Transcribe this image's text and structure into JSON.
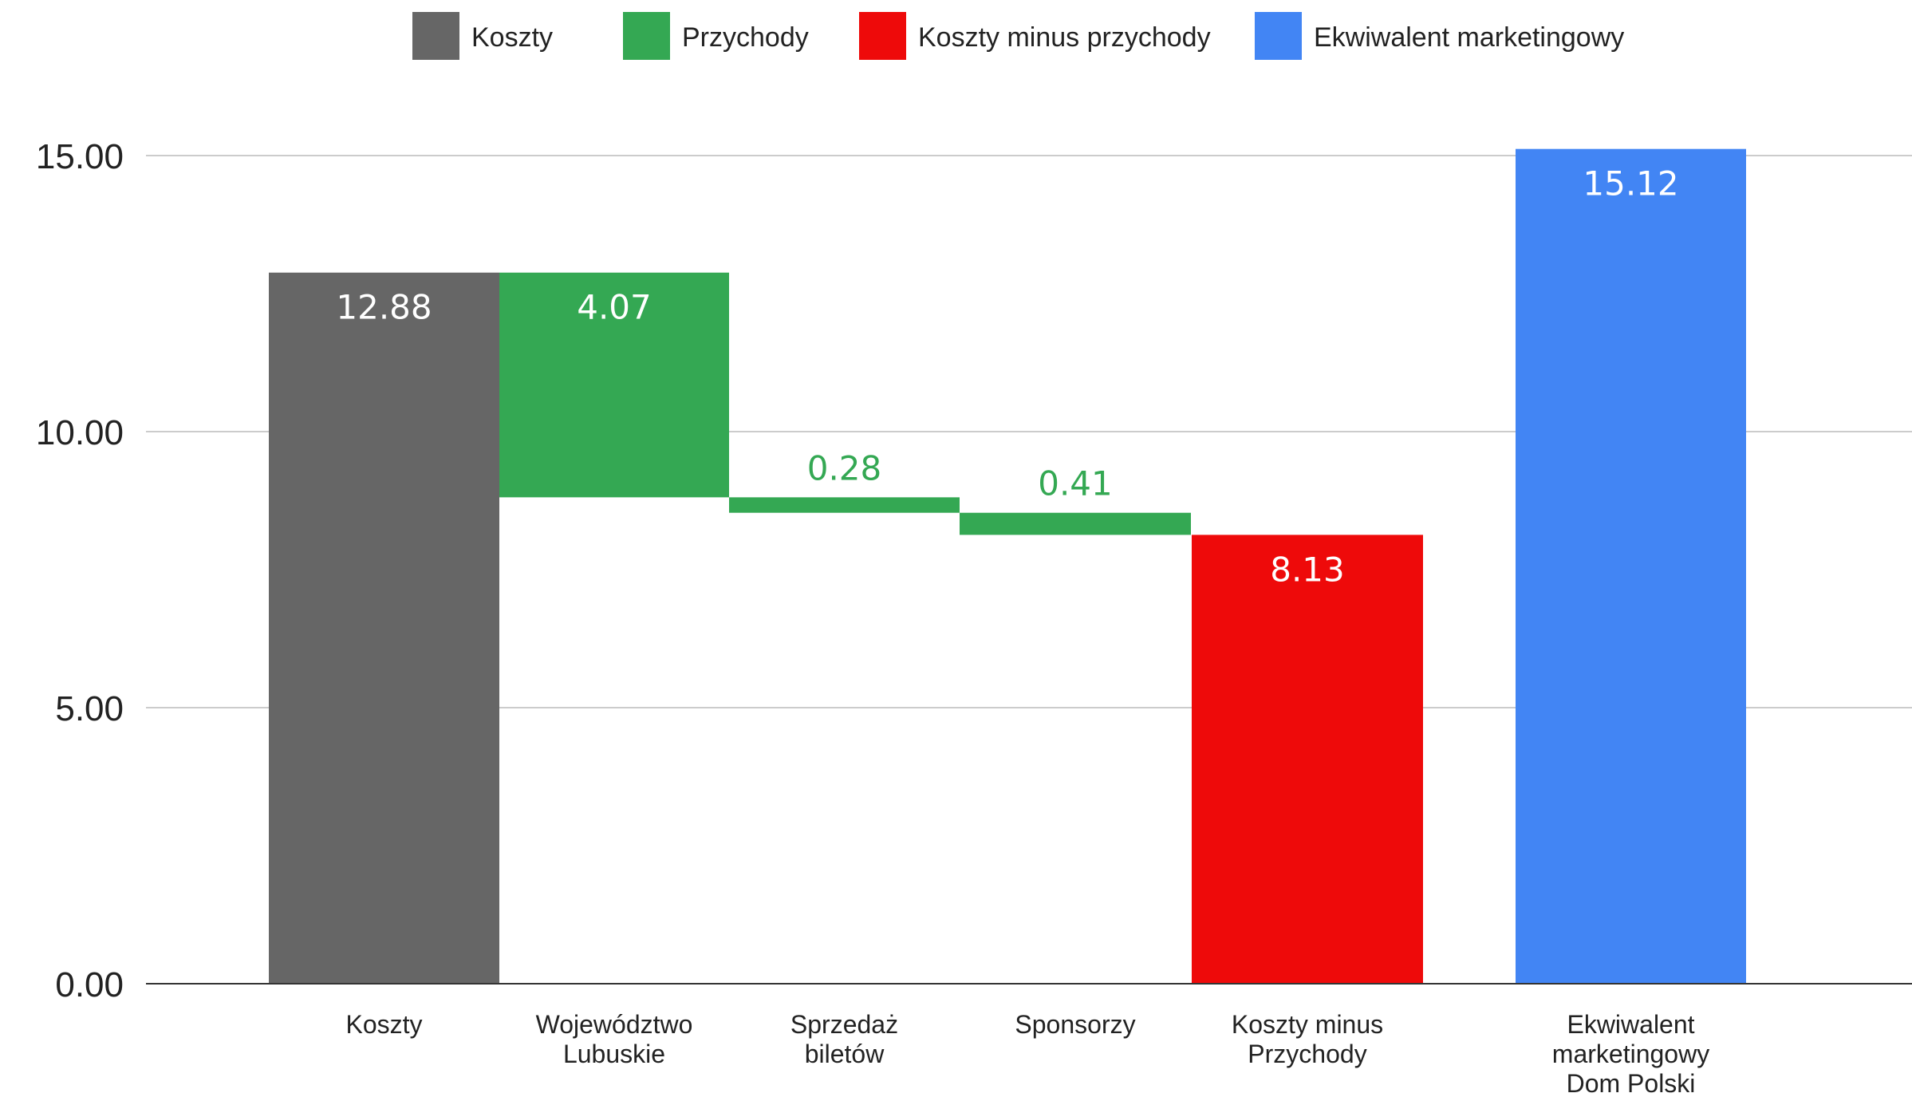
{
  "chart_data": {
    "type": "bar",
    "subtype": "waterfall",
    "title": "",
    "xlabel": "",
    "ylabel": "",
    "ylim": [
      0,
      15.12
    ],
    "yticks": [
      "0.00",
      "5.00",
      "10.00",
      "15.00"
    ],
    "grid": true,
    "legend_position": "top-center",
    "legend": [
      {
        "label": "Koszty",
        "color": "#666666"
      },
      {
        "label": "Przychody",
        "color": "#34a853"
      },
      {
        "label": "Koszty minus przychody",
        "color": "#ee0a0a"
      },
      {
        "label": "Ekwiwalent marketingowy",
        "color": "#4285f4"
      }
    ],
    "categories": [
      [
        "Koszty"
      ],
      [
        "Województwo",
        "Lubuskie"
      ],
      [
        "Sprzedaż",
        "biletów"
      ],
      [
        "Sponsorzy"
      ],
      [
        "Koszty minus",
        "Przychody"
      ],
      [
        "Ekwiwalent",
        "marketingowy",
        "Dom Polski"
      ]
    ],
    "bars": [
      {
        "series": "Koszty",
        "value": 12.88,
        "label": "12.88",
        "start": 0,
        "end": 12.88,
        "color": "#666666",
        "label_color": "#ffffff"
      },
      {
        "series": "Przychody",
        "value": 4.07,
        "label": "4.07",
        "start": 8.81,
        "end": 12.88,
        "color": "#34a853",
        "label_color": "#ffffff"
      },
      {
        "series": "Przychody",
        "value": 0.28,
        "label": "0.28",
        "start": 8.53,
        "end": 8.81,
        "color": "#34a853",
        "label_color": "#34a853"
      },
      {
        "series": "Przychody",
        "value": 0.41,
        "label": "0.41",
        "start": 8.13,
        "end": 8.53,
        "color": "#34a853",
        "label_color": "#34a853"
      },
      {
        "series": "Koszty minus przychody",
        "value": 8.13,
        "label": "8.13",
        "start": 0,
        "end": 8.13,
        "color": "#ee0a0a",
        "label_color": "#ffffff"
      },
      {
        "series": "Ekwiwalent marketingowy",
        "value": 15.12,
        "label": "15.12",
        "start": 0,
        "end": 15.12,
        "color": "#4285f4",
        "label_color": "#ffffff"
      }
    ]
  }
}
